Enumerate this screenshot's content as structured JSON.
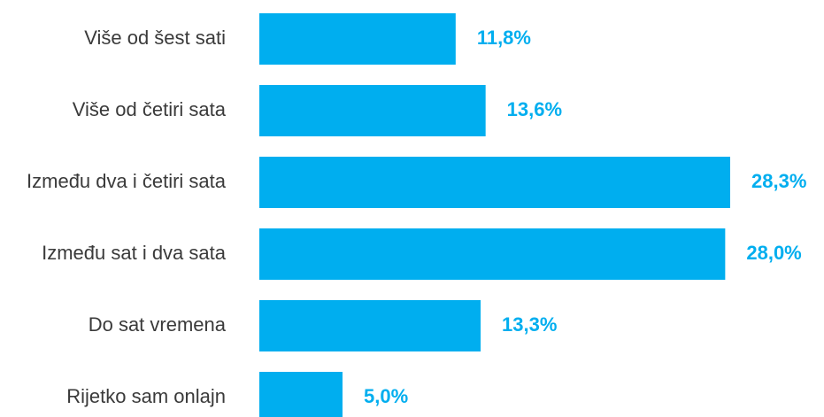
{
  "chart_data": {
    "type": "bar",
    "orientation": "horizontal",
    "categories": [
      "Više od šest sati",
      "Više od četiri sata",
      "Između dva i četiri sata",
      "Između sat i dva sata",
      "Do sat vremena",
      "Rijetko sam onlajn"
    ],
    "values": [
      11.8,
      13.6,
      28.3,
      28.0,
      13.3,
      5.0
    ],
    "value_labels": [
      "11,8%",
      "13,6%",
      "28,3%",
      "28,0%",
      "13,3%",
      "5,0%"
    ],
    "color": "#00aeef"
  }
}
